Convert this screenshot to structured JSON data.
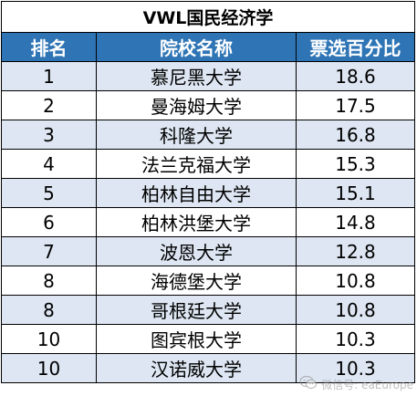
{
  "table": {
    "title": "VWL国民经济学",
    "headers": {
      "rank": "排名",
      "school": "院校名称",
      "vote_pct": "票选百分比"
    },
    "rows": [
      {
        "rank": "1",
        "school": "慕尼黑大学",
        "vote_pct": "18.6"
      },
      {
        "rank": "2",
        "school": "曼海姆大学",
        "vote_pct": "17.5"
      },
      {
        "rank": "3",
        "school": "科隆大学",
        "vote_pct": "16.8"
      },
      {
        "rank": "4",
        "school": "法兰克福大学",
        "vote_pct": "15.3"
      },
      {
        "rank": "5",
        "school": "柏林自由大学",
        "vote_pct": "15.1"
      },
      {
        "rank": "6",
        "school": "柏林洪堡大学",
        "vote_pct": "14.8"
      },
      {
        "rank": "7",
        "school": "波恩大学",
        "vote_pct": "12.8"
      },
      {
        "rank": "8",
        "school": "海德堡大学",
        "vote_pct": "10.8"
      },
      {
        "rank": "8",
        "school": "哥根廷大学",
        "vote_pct": "10.8"
      },
      {
        "rank": "10",
        "school": "图宾根大学",
        "vote_pct": "10.3"
      },
      {
        "rank": "10",
        "school": "汉诺威大学",
        "vote_pct": "10.3"
      }
    ]
  },
  "colors": {
    "header_bg": "#2f75b5",
    "header_text": "#ffffff",
    "row_shade": "#dde6f2",
    "row_plain": "#ffffff",
    "border": "#000000"
  },
  "watermark": {
    "icon": "wechat-logo-icon",
    "text": "微信号: eaEurope"
  }
}
